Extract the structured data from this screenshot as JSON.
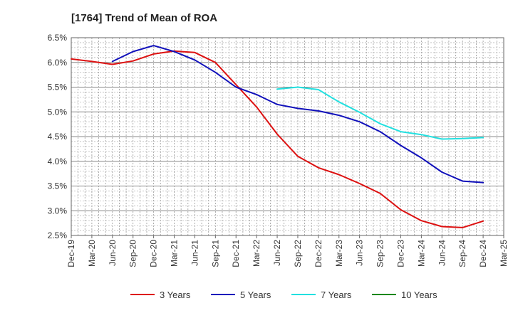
{
  "chart_data": {
    "type": "line",
    "title": "[1764]  Trend of Mean of ROA",
    "xlabel": "",
    "ylabel": "",
    "ylim": [
      2.5,
      6.5
    ],
    "y_ticks": [
      "2.5%",
      "3.0%",
      "3.5%",
      "4.0%",
      "4.5%",
      "5.0%",
      "5.5%",
      "6.0%",
      "6.5%"
    ],
    "x_ticks": [
      "Dec-19",
      "Mar-20",
      "Jun-20",
      "Sep-20",
      "Dec-20",
      "Mar-21",
      "Jun-21",
      "Sep-21",
      "Dec-21",
      "Mar-22",
      "Jun-22",
      "Sep-22",
      "Dec-22",
      "Mar-23",
      "Jun-23",
      "Sep-23",
      "Dec-23",
      "Mar-24",
      "Jun-24",
      "Sep-24",
      "Dec-24",
      "Mar-25"
    ],
    "grid": true,
    "legend_position": "bottom",
    "series": [
      {
        "name": "3 Years",
        "color": "#dd1111",
        "points": [
          [
            0,
            6.07
          ],
          [
            1,
            6.02
          ],
          [
            2,
            5.96
          ],
          [
            3,
            6.03
          ],
          [
            4,
            6.17
          ],
          [
            5,
            6.23
          ],
          [
            6,
            6.2
          ],
          [
            7,
            6.0
          ],
          [
            8,
            5.55
          ],
          [
            9,
            5.1
          ],
          [
            10,
            4.55
          ],
          [
            11,
            4.1
          ],
          [
            12,
            3.87
          ],
          [
            13,
            3.73
          ],
          [
            14,
            3.55
          ],
          [
            15,
            3.35
          ],
          [
            16,
            3.02
          ],
          [
            17,
            2.8
          ],
          [
            18,
            2.68
          ],
          [
            19,
            2.66
          ],
          [
            20,
            2.79
          ]
        ]
      },
      {
        "name": "5 Years",
        "color": "#1111bb",
        "points": [
          [
            2,
            6.02
          ],
          [
            3,
            6.22
          ],
          [
            4,
            6.34
          ],
          [
            5,
            6.22
          ],
          [
            6,
            6.05
          ],
          [
            7,
            5.8
          ],
          [
            8,
            5.5
          ],
          [
            9,
            5.35
          ],
          [
            10,
            5.15
          ],
          [
            11,
            5.07
          ],
          [
            12,
            5.02
          ],
          [
            13,
            4.93
          ],
          [
            14,
            4.8
          ],
          [
            15,
            4.6
          ],
          [
            16,
            4.32
          ],
          [
            17,
            4.07
          ],
          [
            18,
            3.78
          ],
          [
            19,
            3.6
          ],
          [
            20,
            3.57
          ]
        ]
      },
      {
        "name": "7 Years",
        "color": "#22e0e0",
        "points": [
          [
            10,
            5.46
          ],
          [
            11,
            5.5
          ],
          [
            12,
            5.45
          ],
          [
            13,
            5.2
          ],
          [
            14,
            4.99
          ],
          [
            15,
            4.76
          ],
          [
            16,
            4.6
          ],
          [
            17,
            4.54
          ],
          [
            18,
            4.45
          ],
          [
            19,
            4.46
          ],
          [
            20,
            4.48
          ]
        ]
      },
      {
        "name": "10 Years",
        "color": "#118811",
        "points": []
      }
    ]
  }
}
